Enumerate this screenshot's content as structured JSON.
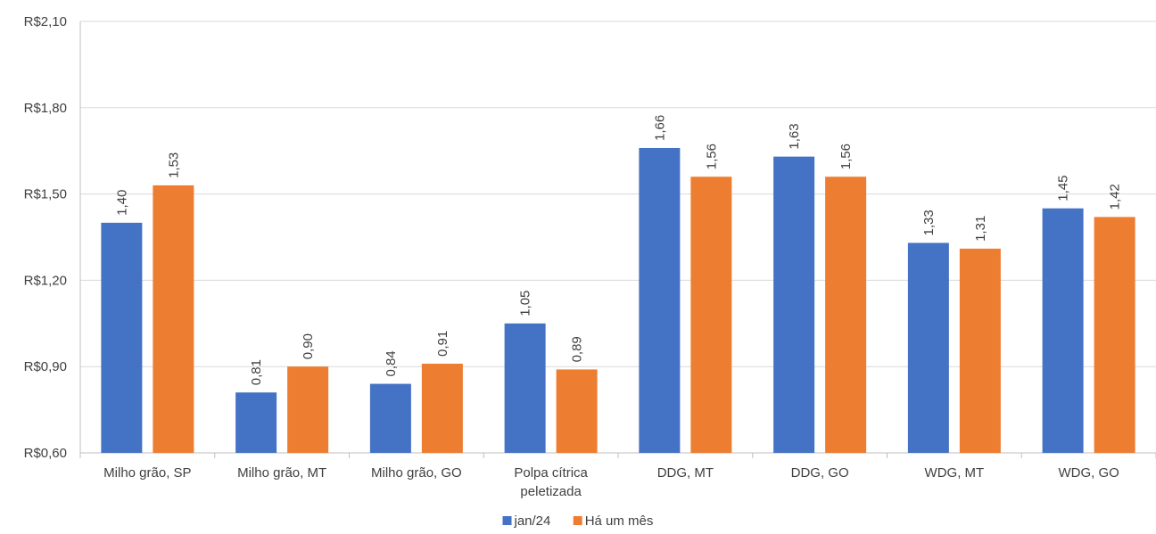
{
  "chart_data": {
    "type": "bar",
    "categories": [
      [
        "Milho grão, SP"
      ],
      [
        "Milho grão, MT"
      ],
      [
        "Milho grão, GO"
      ],
      [
        "Polpa cítrica",
        "peletizada"
      ],
      [
        "DDG, MT"
      ],
      [
        "DDG, GO"
      ],
      [
        "WDG, MT"
      ],
      [
        "WDG, GO"
      ]
    ],
    "series": [
      {
        "name": "jan/24",
        "color": "#4472C4",
        "values": [
          1.4,
          0.81,
          0.84,
          1.05,
          1.66,
          1.63,
          1.33,
          1.45
        ],
        "labels": [
          "1,40",
          "0,81",
          "0,84",
          "1,05",
          "1,66",
          "1,63",
          "1,33",
          "1,45"
        ]
      },
      {
        "name": "Há um mês",
        "color": "#ED7D31",
        "values": [
          1.53,
          0.9,
          0.91,
          0.89,
          1.56,
          1.56,
          1.31,
          1.42
        ],
        "labels": [
          "1,53",
          "0,90",
          "0,91",
          "0,89",
          "1,56",
          "1,56",
          "1,31",
          "1,42"
        ]
      }
    ],
    "yticks": [
      {
        "value": 0.6,
        "label": "R$0,60"
      },
      {
        "value": 0.9,
        "label": "R$0,90"
      },
      {
        "value": 1.2,
        "label": "R$1,20"
      },
      {
        "value": 1.5,
        "label": "R$1,50"
      },
      {
        "value": 1.8,
        "label": "R$1,80"
      },
      {
        "value": 2.1,
        "label": "R$2,10"
      }
    ],
    "ylim": [
      0.6,
      2.1
    ],
    "grid": true,
    "legend_position": "bottom",
    "colors": {
      "grid": "#D9D9D9",
      "axis": "#BFBFBF",
      "text": "#404040"
    }
  }
}
